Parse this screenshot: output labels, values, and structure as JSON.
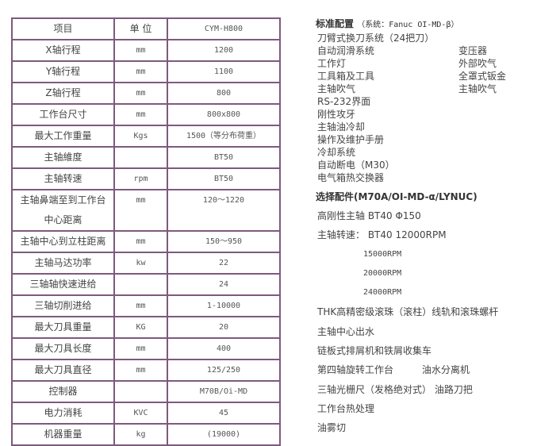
{
  "spec_table": {
    "header": [
      "项目",
      "单 位",
      "CYM-H800"
    ],
    "rows": [
      [
        "X轴行程",
        "mm",
        "1200"
      ],
      [
        "Y轴行程",
        "mm",
        "1100"
      ],
      [
        "Z轴行程",
        "mm",
        "800"
      ],
      [
        "工作台尺寸",
        "mm",
        "800x800"
      ],
      [
        "最大工作重量",
        "Kgs",
        "1500（等分布荷重）"
      ],
      [
        "主轴維度",
        "",
        "BT50"
      ],
      [
        "主轴转速",
        "rpm",
        "BT50"
      ],
      [
        "主轴鼻端至到工作台中心距离",
        "mm",
        "120～1220"
      ],
      [
        "主轴中心到立柱距离",
        "mm",
        "150～950"
      ],
      [
        "主轴马达功率",
        "kw",
        "22"
      ],
      [
        "三轴轴快速进给",
        "",
        "24"
      ],
      [
        "三轴切削进给",
        "mm",
        "1-10000"
      ],
      [
        "最大刀具重量",
        "KG",
        "20"
      ],
      [
        "最大刀具长度",
        "mm",
        "400"
      ],
      [
        "最大刀具直径",
        "mm",
        "125/250"
      ],
      [
        "控制器",
        "",
        "M70B/Oi-MD"
      ],
      [
        "电力消耗",
        "KVC",
        "45"
      ],
      [
        "机器重量",
        "kg",
        "(19000)"
      ]
    ]
  },
  "standard": {
    "title": "标准配置",
    "subtitle": "（系统：Fanuc OI-MD-β）",
    "items": [
      [
        "刀臂式换刀系统（24把刀）",
        ""
      ],
      [
        "自动润滑系统",
        "变压器"
      ],
      [
        "工作灯",
        "外部吹气"
      ],
      [
        "工具箱及工具",
        "全罩式钣金"
      ],
      [
        "主轴吹气",
        "主轴吹气"
      ],
      [
        "RS-232界面",
        ""
      ],
      [
        "刚性攻牙",
        ""
      ],
      [
        "主轴油冷却",
        ""
      ],
      [
        "操作及维护手册",
        ""
      ],
      [
        "冷却系统",
        ""
      ],
      [
        "自动断电（M30）",
        ""
      ],
      [
        "电气箱热交换器",
        ""
      ]
    ]
  },
  "optional": {
    "title": "选择配件(M70A/OI-MD-α/LYNUC)",
    "items": [
      "高刚性主轴 BT40  Φ150",
      "主轴转速： BT40  12000RPM",
      "15000RPM",
      "20000RPM",
      "24000RPM",
      "THK高精密级滚珠（滚柱）线轨和滚珠螺杆",
      "主轴中心出水",
      "链板式排屑机和铁屑收集车",
      "第四轴旋转工作台　　　油水分离机",
      "三轴光栅尺（发格绝对式） 油路刀把",
      "工作台热处理",
      "油雾切"
    ]
  }
}
